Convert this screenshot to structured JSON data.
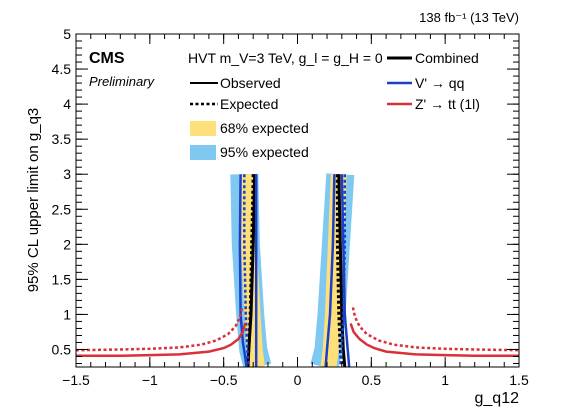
{
  "chart_data": {
    "type": "line",
    "lumi_label": "138 fb⁻¹ (13 TeV)",
    "experiment": "CMS",
    "status": "Preliminary",
    "xlabel": "g_q12",
    "ylabel": "95% CL upper limit on g_q3",
    "xlim": [
      -1.5,
      1.5
    ],
    "ylim": [
      0.25,
      5
    ],
    "x_ticks": [
      -1.5,
      -1,
      -0.5,
      0,
      0.5,
      1,
      1.5
    ],
    "x_tick_labels": [
      "−1.5",
      "−1",
      "−0.5",
      "0",
      "0.5",
      "1",
      "1.5"
    ],
    "y_ticks": [
      0.5,
      1,
      1.5,
      2,
      2.5,
      3,
      3.5,
      4,
      4.5,
      5
    ],
    "y_tick_labels": [
      "0.5",
      "1",
      "1.5",
      "2",
      "2.5",
      "3",
      "3.5",
      "4",
      "4.5",
      "5"
    ],
    "legend": {
      "header": "HVT m_V=3 TeV, g_l = g_H = 0",
      "observed": "Observed",
      "expected": "Expected",
      "band68": "68% expected",
      "band95": "95% expected",
      "combined": "Combined",
      "vqq": "V' → qq",
      "ztt": "Z' → tt (1l)"
    },
    "colors": {
      "combined": "#000000",
      "vqq": "#1c3fc9",
      "ztt": "#d9303a",
      "band68": "#fde07a",
      "band95": "#7ec8f2"
    },
    "bands": [
      {
        "x95": [
          -0.36,
          -0.35,
          -0.32,
          -0.3,
          -0.27,
          -0.24
        ],
        "x68": [
          -0.34,
          -0.33,
          -0.305,
          -0.29,
          -0.275,
          -0.255
        ],
        "y": [
          3,
          2,
          1,
          0.5,
          0.25,
          0.25
        ]
      },
      {
        "x95": [
          0.17,
          0.18,
          0.21,
          0.23,
          0.26,
          0.29
        ],
        "x68": [
          0.2,
          0.21,
          0.225,
          0.24,
          0.26,
          0.28
        ],
        "y": [
          0.25,
          0.25,
          0.5,
          1,
          2,
          3
        ]
      }
    ],
    "series": [
      {
        "name": "Combined",
        "observed": [
          [
            [
              -0.29,
              3
            ],
            [
              -0.3,
              2
            ],
            [
              -0.315,
              1
            ],
            [
              -0.33,
              0.5
            ],
            [
              -0.335,
              0.25
            ]
          ],
          [
            [
              0.28,
              3
            ],
            [
              0.29,
              2
            ],
            [
              0.3,
              1
            ],
            [
              0.31,
              0.5
            ],
            [
              0.32,
              0.25
            ]
          ]
        ],
        "expected": [
          [
            [
              -0.3,
              3
            ],
            [
              -0.31,
              2
            ],
            [
              -0.32,
              1
            ],
            [
              -0.33,
              0.5
            ],
            [
              -0.34,
              0.25
            ]
          ],
          [
            [
              0.27,
              3
            ],
            [
              0.27,
              2
            ],
            [
              0.28,
              1
            ],
            [
              0.29,
              0.5
            ],
            [
              0.3,
              0.25
            ]
          ]
        ]
      },
      {
        "name": "V' → qq",
        "observed": [
          [
            [
              -0.385,
              3
            ],
            [
              -0.39,
              2
            ],
            [
              -0.385,
              1
            ],
            [
              -0.37,
              0.6
            ],
            [
              -0.355,
              0.4
            ],
            [
              -0.345,
              0.25
            ]
          ],
          [
            [
              0.19,
              0.25
            ],
            [
              0.2,
              0.5
            ],
            [
              0.22,
              1
            ],
            [
              0.24,
              2
            ],
            [
              0.25,
              3
            ]
          ],
          [
            [
              -0.28,
              3
            ],
            [
              -0.28,
              0.25
            ]
          ],
          [
            [
              0.3,
              3
            ],
            [
              0.31,
              2
            ],
            [
              0.32,
              1
            ],
            [
              0.34,
              0.5
            ],
            [
              0.35,
              0.25
            ]
          ]
        ],
        "expected": [
          [
            [
              -0.36,
              3
            ],
            [
              -0.36,
              2
            ],
            [
              -0.35,
              1
            ],
            [
              -0.34,
              0.5
            ],
            [
              -0.33,
              0.25
            ]
          ],
          [
            [
              0.32,
              3
            ],
            [
              0.32,
              2
            ],
            [
              0.31,
              1
            ],
            [
              0.3,
              0.5
            ],
            [
              0.29,
              0.25
            ]
          ]
        ]
      },
      {
        "name": "Z' → tt (1l)",
        "observed": [
          [
            [
              -1.5,
              0.41
            ],
            [
              -1.2,
              0.41
            ],
            [
              -1.0,
              0.42
            ],
            [
              -0.8,
              0.43
            ],
            [
              -0.6,
              0.47
            ],
            [
              -0.5,
              0.52
            ],
            [
              -0.45,
              0.57
            ],
            [
              -0.4,
              0.65
            ],
            [
              -0.37,
              0.75
            ],
            [
              -0.355,
              0.87
            ]
          ],
          [
            [
              0.36,
              0.87
            ],
            [
              0.38,
              0.75
            ],
            [
              0.42,
              0.65
            ],
            [
              0.47,
              0.57
            ],
            [
              0.52,
              0.52
            ],
            [
              0.6,
              0.47
            ],
            [
              0.8,
              0.43
            ],
            [
              1.0,
              0.42
            ],
            [
              1.2,
              0.41
            ],
            [
              1.5,
              0.41
            ]
          ]
        ],
        "expected": [
          [
            [
              -1.5,
              0.49
            ],
            [
              -1.2,
              0.5
            ],
            [
              -1.0,
              0.51
            ],
            [
              -0.8,
              0.53
            ],
            [
              -0.65,
              0.57
            ],
            [
              -0.55,
              0.63
            ],
            [
              -0.47,
              0.72
            ],
            [
              -0.42,
              0.83
            ],
            [
              -0.39,
              0.96
            ],
            [
              -0.375,
              1.1
            ]
          ],
          [
            [
              0.375,
              1.1
            ],
            [
              0.39,
              0.96
            ],
            [
              0.42,
              0.83
            ],
            [
              0.47,
              0.72
            ],
            [
              0.55,
              0.63
            ],
            [
              0.65,
              0.57
            ],
            [
              0.8,
              0.53
            ],
            [
              1.0,
              0.51
            ],
            [
              1.2,
              0.5
            ],
            [
              1.5,
              0.49
            ]
          ]
        ]
      }
    ]
  }
}
